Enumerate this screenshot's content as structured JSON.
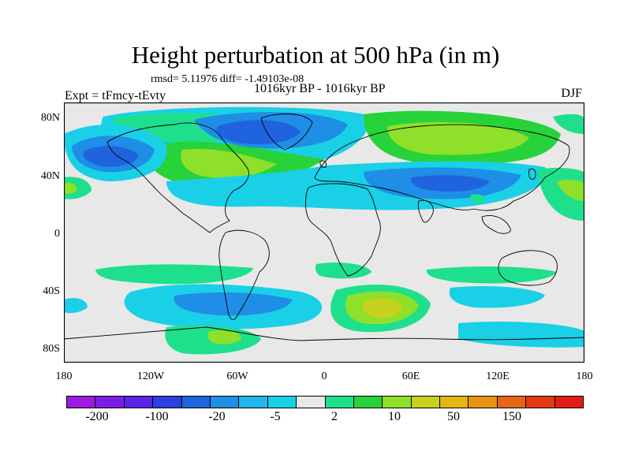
{
  "title": "Height perturbation at 500 hPa (in m)",
  "stats_label": "rmsd= 5.11976 diff= -1.49103e-08",
  "left_label": "Expt = tFmcy-tEvty",
  "center_label": "1016kyr BP - 1016kyr BP",
  "right_label": "DJF",
  "lat_ticks": [
    "80N",
    "40N",
    "0",
    "40S",
    "80S"
  ],
  "lon_ticks": [
    "180",
    "120W",
    "60W",
    "0",
    "60E",
    "120E",
    "180"
  ],
  "colorbar": {
    "labels": [
      "-200",
      "-100",
      "-20",
      "-5",
      "2",
      "10",
      "50",
      "150"
    ],
    "colors": [
      "#9c1be0",
      "#7a1ee6",
      "#5a23e6",
      "#2c3fe0",
      "#1f64dc",
      "#1e8ee6",
      "#22b6ea",
      "#1ad0e6",
      "#e8e8e8",
      "#1ee08c",
      "#28d23a",
      "#8ee02a",
      "#c8d21e",
      "#e4b614",
      "#e69414",
      "#e66414",
      "#e43a14",
      "#e01e14"
    ]
  },
  "map": {
    "projection": "cylindrical equidistant",
    "background_color": "#e8e8e8"
  }
}
